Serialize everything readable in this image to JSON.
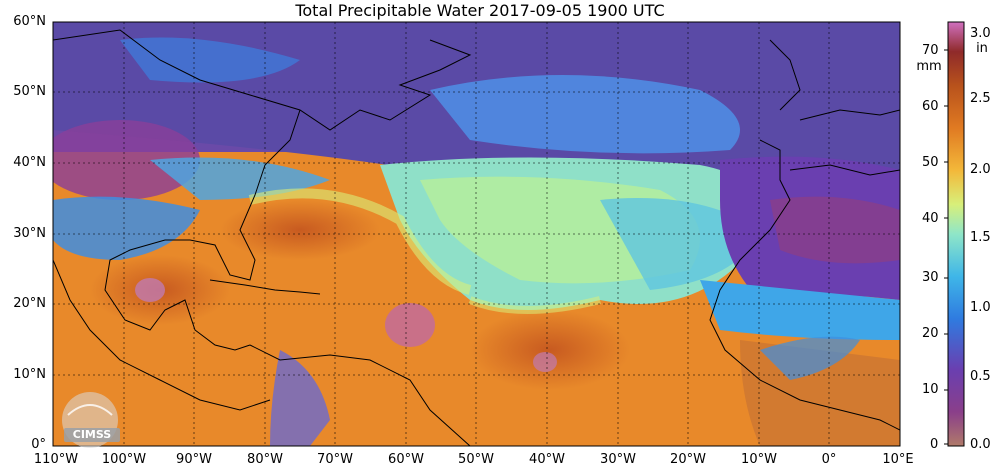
{
  "map": {
    "title": "Total Precipitable Water  2017-09-05 1900 UTC",
    "lat_labels": [
      "60°N",
      "50°N",
      "40°N",
      "30°N",
      "20°N",
      "10°N",
      "0°"
    ],
    "lon_labels": [
      "110°W",
      "100°W",
      "90°W",
      "80°W",
      "70°W",
      "60°W",
      "50°W",
      "40°W",
      "30°W",
      "20°W",
      "10°W",
      "0°",
      "10°E"
    ],
    "extent": {
      "lon_min": -110,
      "lon_max": 10,
      "lat_min": 0,
      "lat_max": 60
    },
    "logo": "CIMSS"
  },
  "colorbar": {
    "mm_ticks": [
      "70",
      "60",
      "50",
      "40",
      "30",
      "20",
      "10",
      "0"
    ],
    "mm_unit": "mm",
    "in_ticks": [
      "3.0",
      "2.5",
      "2.0",
      "1.5",
      "1.0",
      "0.5",
      "0.0"
    ],
    "in_unit": "in",
    "range_mm": [
      0,
      76
    ],
    "colors": [
      "#b07a6a",
      "#7a2f8a",
      "#6a3fb0",
      "#2f7be0",
      "#3fb6e8",
      "#8fe6c8",
      "#d8ef7a",
      "#f3b83a",
      "#e07a22",
      "#b8521c",
      "#8f2a2a",
      "#d070c0"
    ]
  }
}
